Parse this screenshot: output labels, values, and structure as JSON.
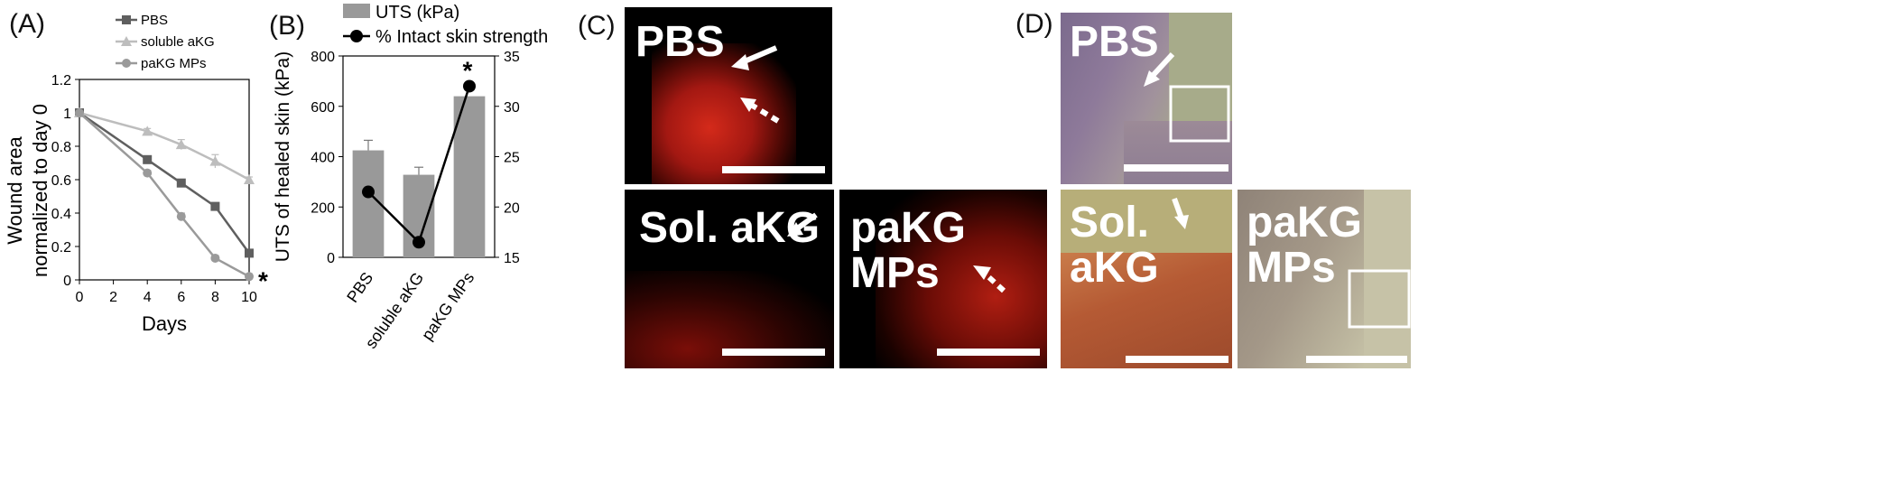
{
  "panel_letters": [
    "(A)",
    "(B)",
    "(C)",
    "(D)"
  ],
  "chart_data": [
    {
      "type": "line",
      "x": [
        0,
        4,
        6,
        8,
        10
      ],
      "series": [
        {
          "name": "PBS",
          "values": [
            1,
            0.72,
            0.58,
            0.44,
            0.16
          ],
          "errors": [
            0,
            0.015,
            0.02,
            0.015,
            0.015
          ],
          "color": "#5f5f5f",
          "marker": "square"
        },
        {
          "name": "soluble aKG",
          "values": [
            1,
            0.89,
            0.81,
            0.71,
            0.6
          ],
          "errors": [
            0,
            0.015,
            0.03,
            0.04,
            0.015
          ],
          "color": "#bdbdbd",
          "marker": "triangle"
        },
        {
          "name": "paKG MPs",
          "values": [
            1,
            0.64,
            0.38,
            0.13,
            0.02
          ],
          "errors": [
            0,
            0.015,
            0.02,
            0.015,
            0.01
          ],
          "color": "#9a9a9a",
          "marker": "circle"
        }
      ],
      "xlabel": "Days",
      "ylabel": "Wound area normalized to day 0",
      "xlim": [
        0,
        10
      ],
      "ylim": [
        0,
        1.2
      ],
      "xticks": [
        "0",
        "2",
        "4",
        "6",
        "8",
        "10"
      ],
      "yticks": [
        "0",
        "0.2",
        "0.4",
        "0.6",
        "0.8",
        "1",
        "1.2"
      ],
      "annotation": "*",
      "legend": "top-left"
    },
    {
      "type": "bar",
      "categories": [
        "PBS",
        "soluble aKG",
        "paKG MPs"
      ],
      "series": [
        {
          "name": "UTS (kPa)",
          "values": [
            425,
            328,
            640
          ],
          "errors": [
            40,
            30,
            0
          ],
          "axis": "left",
          "color": "#999999"
        },
        {
          "name": "% Intact skin strength",
          "values": [
            21.5,
            16.5,
            32
          ],
          "axis": "right",
          "color": "#000000",
          "style": "line-marker"
        }
      ],
      "ylabel": "UTS of healed skin (kPa)",
      "y2label": "% Intact skin strength",
      "ylim": [
        0,
        800
      ],
      "y2lim": [
        15,
        35
      ],
      "yticks": [
        "0",
        "200",
        "400",
        "600",
        "800"
      ],
      "y2ticks": [
        "15",
        "20",
        "25",
        "30",
        "35"
      ],
      "annotation": "*",
      "legend": "top"
    }
  ],
  "panel_c": {
    "tiles": [
      {
        "label": "PBS",
        "tone": "dense-red"
      },
      {
        "label": "Sol. aKG",
        "tone": "sparse-red"
      },
      {
        "label": "paKG\nMPs",
        "tone": "medium-red"
      }
    ]
  },
  "panel_d": {
    "tiles": [
      {
        "label": "PBS",
        "tone": "purple-histology"
      },
      {
        "label": "Sol.\naKG",
        "tone": "orange-histology"
      },
      {
        "label": "paKG\nMPs",
        "tone": "grey-histology"
      }
    ]
  }
}
